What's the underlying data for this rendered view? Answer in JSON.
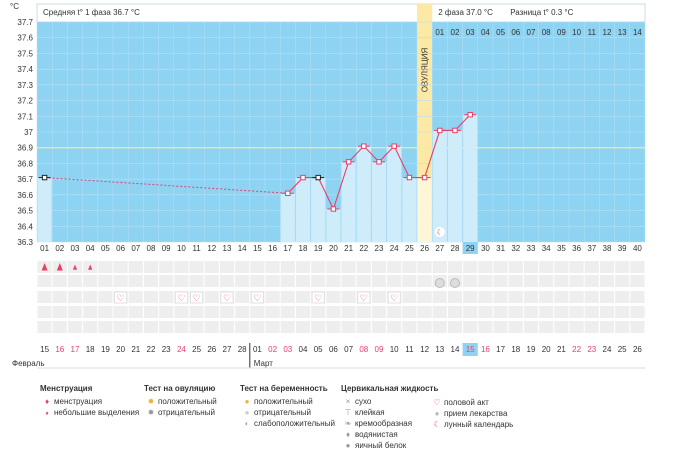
{
  "chart_data": {
    "type": "line",
    "header": {
      "phase1": "Средняя t° 1 фаза 36.7 °C",
      "phase2": "2 фаза 37.0 °C",
      "diff": "Разница t° 0.3 °C"
    },
    "ylabel": "°C",
    "ylim": [
      36.3,
      37.7
    ],
    "yticks": [
      "36.3",
      "36.4",
      "36.5",
      "36.6",
      "36.7",
      "36.8",
      "36.9",
      "37",
      "37.1",
      "37.2",
      "37.3",
      "37.4",
      "37.5",
      "37.6",
      "37.7"
    ],
    "coverline": 36.9,
    "ovulation_day": 26,
    "ovulation_label": "ОВУЛЯЦИЯ",
    "current_day": 29,
    "top_day_labels": [
      "01",
      "02",
      "03",
      "04",
      "05",
      "06",
      "07",
      "08",
      "09",
      "10",
      "11",
      "12",
      "13",
      "14"
    ],
    "days": [
      "01",
      "02",
      "03",
      "04",
      "05",
      "06",
      "07",
      "08",
      "09",
      "10",
      "11",
      "12",
      "13",
      "14",
      "15",
      "16",
      "17",
      "18",
      "19",
      "20",
      "21",
      "22",
      "23",
      "24",
      "25",
      "26",
      "27",
      "28",
      "29",
      "30",
      "31",
      "32",
      "33",
      "34",
      "35",
      "36",
      "37",
      "38",
      "39",
      "40"
    ],
    "dates": [
      "15",
      "16",
      "17",
      "18",
      "19",
      "20",
      "21",
      "22",
      "23",
      "24",
      "25",
      "26",
      "27",
      "28",
      "01",
      "02",
      "03",
      "04",
      "05",
      "06",
      "07",
      "08",
      "09",
      "10",
      "11",
      "12",
      "13",
      "14",
      "15",
      "16",
      "17",
      "18",
      "19",
      "20",
      "21",
      "22",
      "23",
      "24",
      "25",
      "26"
    ],
    "red_dates": [
      2,
      3,
      10,
      16,
      17,
      22,
      23,
      29,
      30,
      36,
      37
    ],
    "months": [
      {
        "label": "Февраль",
        "day": 1
      },
      {
        "label": "Март",
        "day": 15
      }
    ],
    "temps": [
      {
        "day": 1,
        "t": 36.71
      },
      {
        "day": 17,
        "t": 36.61
      },
      {
        "day": 18,
        "t": 36.71
      },
      {
        "day": 19,
        "t": 36.71
      },
      {
        "day": 20,
        "t": 36.51
      },
      {
        "day": 21,
        "t": 36.81
      },
      {
        "day": 22,
        "t": 36.91
      },
      {
        "day": 23,
        "t": 36.81
      },
      {
        "day": 24,
        "t": 36.91
      },
      {
        "day": 25,
        "t": 36.71
      },
      {
        "day": 26,
        "t": 36.71
      },
      {
        "day": 27,
        "t": 37.01
      },
      {
        "day": 28,
        "t": 37.01
      },
      {
        "day": 29,
        "t": 37.11
      }
    ],
    "menstruation": [
      {
        "day": 1,
        "type": "heavy"
      },
      {
        "day": 2,
        "type": "heavy"
      },
      {
        "day": 3,
        "type": "light"
      },
      {
        "day": 4,
        "type": "light"
      }
    ],
    "intercourse_days": [
      6,
      10,
      11,
      13,
      15,
      19,
      22,
      24
    ],
    "medication_days": [
      27,
      28
    ],
    "lunar_days": [
      27
    ]
  },
  "legend": {
    "menstruation": {
      "title": "Менструация",
      "items": [
        "менструация",
        "небольшие выделения"
      ]
    },
    "ovulation_test": {
      "title": "Тест на овуляцию",
      "items": [
        "положительный",
        "отрицательный"
      ]
    },
    "pregnancy_test": {
      "title": "Тест на беременность",
      "items": [
        "положительный",
        "отрицательный",
        "слабоположительный"
      ]
    },
    "cervical": {
      "title": "Цервикальная жидкость",
      "items": [
        "сухо",
        "клейкая",
        "кремообразная",
        "водянистая",
        "яичный белок"
      ]
    },
    "other": {
      "items": [
        "половой акт",
        "прием лекарства",
        "лунный календарь"
      ]
    }
  },
  "colors": {
    "blue": "#8fd3f3",
    "light_blue": "#cfecfb",
    "ovulation": "#fde9a6",
    "accent": "#e83e6a",
    "bg_row": "#eeeeee"
  }
}
